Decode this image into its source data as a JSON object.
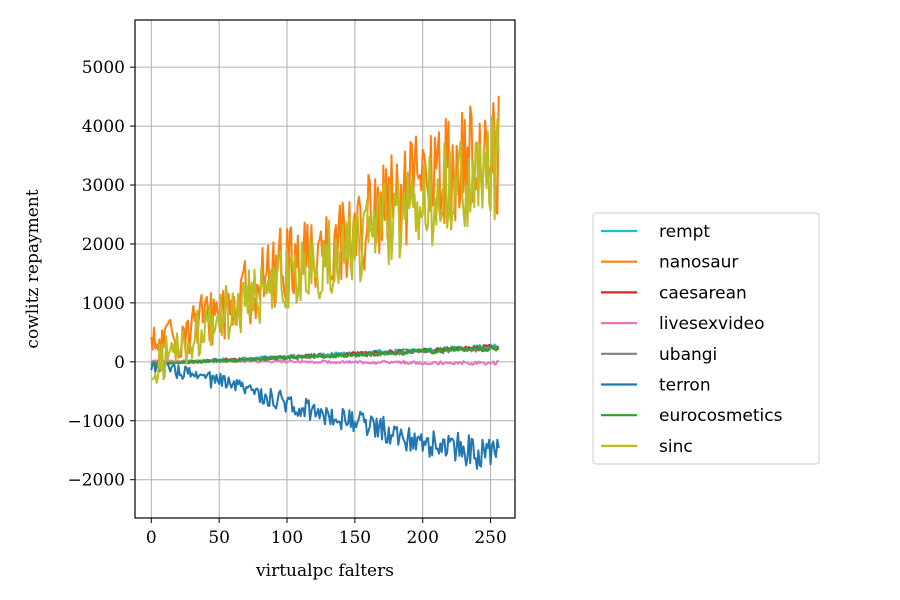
{
  "chart_data": {
    "type": "line",
    "title": "",
    "xlabel": "virtualpc falters",
    "ylabel": "cowlitz repayment",
    "xlim": [
      -12,
      268
    ],
    "ylim": [
      -2650,
      5800
    ],
    "xticks": [
      0,
      50,
      100,
      150,
      200,
      250
    ],
    "yticks": [
      -2000,
      -1000,
      0,
      1000,
      2000,
      3000,
      4000,
      5000
    ],
    "grid": true,
    "legend_position": "right",
    "n_points": 257,
    "series": [
      {
        "name": "rempt",
        "color": "#17becf",
        "trend": [
          [
            0,
            -20
          ],
          [
            256,
            260
          ]
        ],
        "noise": 45
      },
      {
        "name": "nanosaur",
        "color": "#ff7f0e",
        "trend": [
          [
            0,
            200
          ],
          [
            60,
            1000
          ],
          [
            100,
            1700
          ],
          [
            150,
            2200
          ],
          [
            200,
            3000
          ],
          [
            256,
            3600
          ]
        ],
        "noise": 1100
      },
      {
        "name": "caesarean",
        "color": "#d62728",
        "trend": [
          [
            0,
            -30
          ],
          [
            256,
            250
          ]
        ],
        "noise": 45
      },
      {
        "name": "livesexvideo",
        "color": "#e377c2",
        "trend": [
          [
            0,
            20
          ],
          [
            256,
            -20
          ]
        ],
        "noise": 35
      },
      {
        "name": "ubangi",
        "color": "#7f7f7f",
        "trend": [
          [
            0,
            -40
          ],
          [
            256,
            230
          ]
        ],
        "noise": 45
      },
      {
        "name": "terron",
        "color": "#1f77b4",
        "trend": [
          [
            0,
            -50
          ],
          [
            60,
            -400
          ],
          [
            100,
            -700
          ],
          [
            150,
            -1000
          ],
          [
            200,
            -1350
          ],
          [
            256,
            -1600
          ]
        ],
        "noise": 300
      },
      {
        "name": "eurocosmetics",
        "color": "#2ca02c",
        "trend": [
          [
            0,
            -40
          ],
          [
            256,
            240
          ]
        ],
        "noise": 55
      },
      {
        "name": "sinc",
        "color": "#bcbd22",
        "trend": [
          [
            0,
            -100
          ],
          [
            60,
            900
          ],
          [
            100,
            1400
          ],
          [
            150,
            2000
          ],
          [
            200,
            2700
          ],
          [
            256,
            3300
          ]
        ],
        "noise": 950
      }
    ]
  }
}
